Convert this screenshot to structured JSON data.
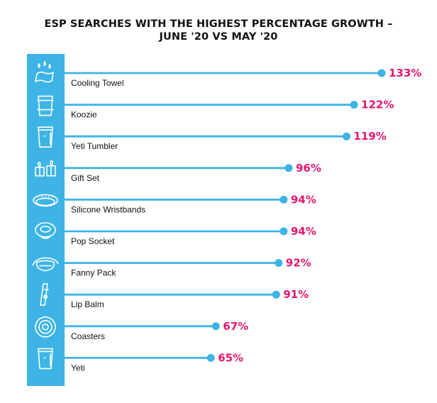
{
  "title_lines": [
    "ESP SEARCHES WITH THE HIGHEST PERCENTAGE GROWTH –",
    "JUNE '20 VS MAY '20"
  ],
  "colors": {
    "accent": "#3db4e5",
    "value_label": "#e5166f",
    "text": "#111111"
  },
  "chart_data": {
    "type": "bar",
    "title": "ESP SEARCHES WITH THE HIGHEST PERCENTAGE GROWTH – JUNE '20 VS MAY '20",
    "xlabel": "",
    "ylabel": "",
    "value_unit": "%",
    "categories": [
      "Cooling Towel",
      "Koozie",
      "Yeti Tumbler",
      "Gift Set",
      "Silicone Wristbands",
      "Pop Socket",
      "Fanny Pack",
      "Lip Balm",
      "Coasters",
      "Yeti"
    ],
    "values": [
      133,
      122,
      119,
      96,
      94,
      94,
      92,
      91,
      67,
      65
    ],
    "value_labels": [
      "133%",
      "122%",
      "119%",
      "96%",
      "94%",
      "94%",
      "92%",
      "91%",
      "67%",
      "65%"
    ],
    "icons": [
      "water-drops-towel-icon",
      "koozie-cup-icon",
      "tumbler-icon",
      "gift-set-icon",
      "wristband-icon",
      "pop-socket-icon",
      "fanny-pack-icon",
      "lip-balm-icon",
      "coaster-icon",
      "yeti-cup-icon"
    ],
    "grid": false,
    "legend": "none"
  }
}
